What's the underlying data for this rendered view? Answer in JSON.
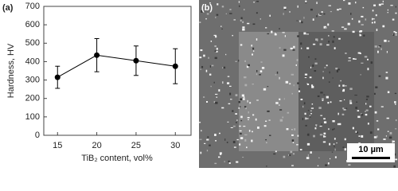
{
  "chart_data": {
    "type": "line",
    "panel_label": "(a)",
    "xlabel": "TiB₂ content, vol%",
    "ylabel": "Hardness, HV",
    "x": [
      15,
      20,
      25,
      30
    ],
    "values": [
      315,
      435,
      405,
      375
    ],
    "errors": [
      60,
      90,
      80,
      95
    ],
    "color": "#000000",
    "xlim": [
      13.25,
      32
    ],
    "xticks": [
      15,
      20,
      25,
      30
    ],
    "ylim": [
      0,
      700
    ],
    "yticks": [
      0,
      100,
      200,
      300,
      400,
      500,
      600,
      700
    ]
  },
  "image": {
    "panel_label": "(b)",
    "scale_bar": "10 µm"
  }
}
